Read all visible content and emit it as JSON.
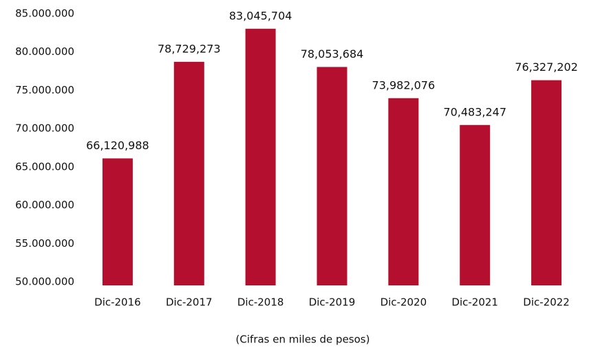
{
  "chart_data": {
    "type": "bar",
    "categories": [
      "Dic-2016",
      "Dic-2017",
      "Dic-2018",
      "Dic-2019",
      "Dic-2020",
      "Dic-2021",
      "Dic-2022"
    ],
    "values": [
      66120988,
      78729273,
      83045704,
      78053684,
      73982076,
      70483247,
      76327202
    ],
    "value_labels": [
      "66,120,988",
      "78,729,273",
      "83,045,704",
      "78,053,684",
      "73,982,076",
      "70,483,247",
      "76,327,202"
    ],
    "color": "#b50f30",
    "ylim": [
      50000000,
      85000000
    ],
    "yticks": [
      {
        "value": 50000000,
        "label": "50.000.000"
      },
      {
        "value": 55000000,
        "label": "55.000.000"
      },
      {
        "value": 60000000,
        "label": "60.000.000"
      },
      {
        "value": 65000000,
        "label": "65.000.000"
      },
      {
        "value": 70000000,
        "label": "70.000.000"
      },
      {
        "value": 75000000,
        "label": "75.000.000"
      },
      {
        "value": 80000000,
        "label": "80.000.000"
      },
      {
        "value": 85000000,
        "label": "85.000.000"
      }
    ],
    "grid": false,
    "x_label": "(Cifras en miles de pesos)"
  }
}
